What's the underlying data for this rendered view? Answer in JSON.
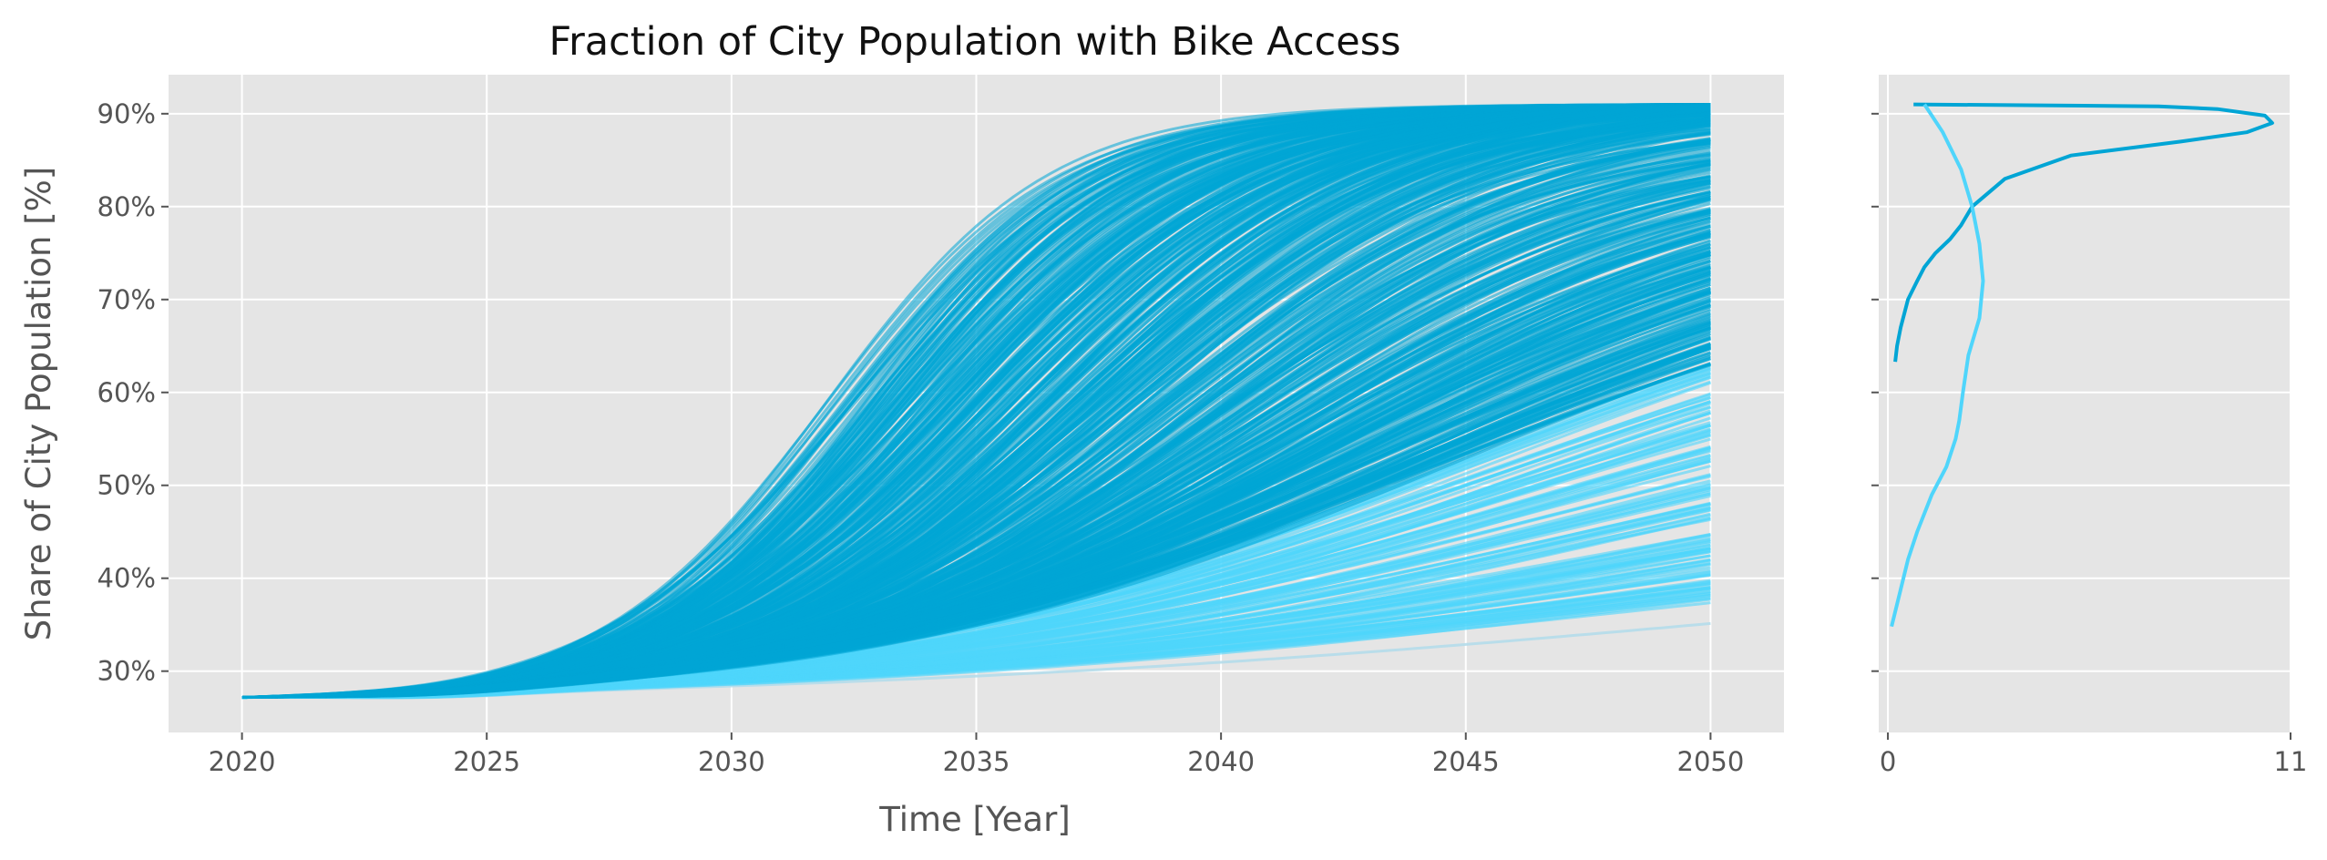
{
  "chart_data": [
    {
      "type": "line",
      "title": "Fraction of City Population with Bike Access",
      "xlabel": "Time [Year]",
      "ylabel": "Share of City Population [%]",
      "xlim": [
        2018.5,
        2051.5
      ],
      "ylim": [
        23.4,
        94.2
      ],
      "x_ticks": [
        2020,
        2025,
        2030,
        2035,
        2040,
        2045,
        2050
      ],
      "x_tick_labels": [
        "2020",
        "2025",
        "2030",
        "2035",
        "2040",
        "2045",
        "2050"
      ],
      "y_ticks": [
        30,
        40,
        50,
        60,
        70,
        80,
        90
      ],
      "y_tick_labels": [
        "30%",
        "40%",
        "50%",
        "60%",
        "70%",
        "80%",
        "90%"
      ],
      "grid": true,
      "colors": {
        "background": "#e5e5e5",
        "grid": "#ffffff",
        "dark_series": "#00a5d5",
        "light_series": "#4fd5fb",
        "pale_series": "#b4dcea"
      },
      "series_description_note": "",
      "series": [
        {
          "group": "dark",
          "start": 27.2,
          "end": 91.0,
          "min": 26.9,
          "midpoint_year": 2032.5,
          "rate": 0.42
        },
        {
          "group": "dark",
          "start": 27.2,
          "end": 91.0,
          "min": 26.9,
          "midpoint_year": 2033.0,
          "rate": 0.4
        },
        {
          "group": "dark",
          "start": 27.2,
          "end": 91.0,
          "min": 26.9,
          "midpoint_year": 2033.5,
          "rate": 0.38
        },
        {
          "group": "dark",
          "start": 27.2,
          "end": 91.0,
          "min": 26.9,
          "midpoint_year": 2034.0,
          "rate": 0.36
        },
        {
          "group": "dark",
          "start": 27.2,
          "end": 91.0,
          "min": 26.9,
          "midpoint_year": 2034.5,
          "rate": 0.35
        },
        {
          "group": "dark",
          "start": 27.2,
          "end": 91.0,
          "min": 26.9,
          "midpoint_year": 2035.0,
          "rate": 0.34
        },
        {
          "group": "dark",
          "start": 27.2,
          "end": 91.0,
          "min": 26.9,
          "midpoint_year": 2035.5,
          "rate": 0.33
        },
        {
          "group": "dark",
          "start": 27.2,
          "end": 91.0,
          "min": 26.9,
          "midpoint_year": 2036.0,
          "rate": 0.32
        },
        {
          "group": "dark",
          "start": 27.2,
          "end": 90.8,
          "min": 26.9,
          "midpoint_year": 2036.5,
          "rate": 0.31
        },
        {
          "group": "dark",
          "start": 27.2,
          "end": 90.5,
          "min": 26.9,
          "midpoint_year": 2037.0,
          "rate": 0.3
        },
        {
          "group": "dark",
          "start": 27.2,
          "end": 90.0,
          "min": 26.9,
          "midpoint_year": 2037.5,
          "rate": 0.29
        },
        {
          "group": "dark",
          "start": 27.2,
          "end": 89.0,
          "min": 26.9,
          "midpoint_year": 2038.0,
          "rate": 0.28
        },
        {
          "group": "dark",
          "start": 27.2,
          "end": 88.0,
          "min": 26.9,
          "midpoint_year": 2038.5,
          "rate": 0.27
        },
        {
          "group": "dark",
          "start": 27.2,
          "end": 86.0,
          "min": 26.9,
          "midpoint_year": 2039.0,
          "rate": 0.26
        },
        {
          "group": "dark",
          "start": 27.2,
          "end": 84.0,
          "min": 26.9,
          "midpoint_year": 2039.5,
          "rate": 0.25
        },
        {
          "group": "dark",
          "start": 27.2,
          "end": 82.0,
          "min": 26.9,
          "midpoint_year": 2040.0,
          "rate": 0.24
        },
        {
          "group": "dark",
          "start": 27.2,
          "end": 80.0,
          "min": 26.9,
          "midpoint_year": 2040.5,
          "rate": 0.23
        },
        {
          "group": "dark",
          "start": 27.2,
          "end": 78.0,
          "min": 26.9,
          "midpoint_year": 2041.0,
          "rate": 0.22
        },
        {
          "group": "dark",
          "start": 27.2,
          "end": 76.0,
          "min": 26.9,
          "midpoint_year": 2041.5,
          "rate": 0.21
        },
        {
          "group": "dark",
          "start": 27.2,
          "end": 74.0,
          "min": 26.9,
          "midpoint_year": 2042.0,
          "rate": 0.2
        },
        {
          "group": "dark",
          "start": 27.2,
          "end": 72.0,
          "min": 26.9,
          "midpoint_year": 2042.5,
          "rate": 0.19
        },
        {
          "group": "dark",
          "start": 27.2,
          "end": 70.0,
          "min": 26.9,
          "midpoint_year": 2043.0,
          "rate": 0.18
        },
        {
          "group": "dark",
          "start": 27.2,
          "end": 68.0,
          "min": 26.9,
          "midpoint_year": 2043.5,
          "rate": 0.17
        },
        {
          "group": "dark",
          "start": 27.2,
          "end": 66.0,
          "min": 26.9,
          "midpoint_year": 2044.0,
          "rate": 0.17
        },
        {
          "group": "dark",
          "start": 27.2,
          "end": 64.0,
          "min": 26.9,
          "midpoint_year": 2044.5,
          "rate": 0.16
        },
        {
          "group": "light",
          "start": 27.2,
          "end": 62.0,
          "min": 26.8,
          "midpoint_year": 2045.0,
          "rate": 0.15
        },
        {
          "group": "light",
          "start": 27.2,
          "end": 59.0,
          "min": 26.8,
          "midpoint_year": 2045.5,
          "rate": 0.15
        },
        {
          "group": "light",
          "start": 27.2,
          "end": 56.0,
          "min": 26.8,
          "midpoint_year": 2046.0,
          "rate": 0.14
        },
        {
          "group": "light",
          "start": 27.2,
          "end": 53.0,
          "min": 26.8,
          "midpoint_year": 2046.5,
          "rate": 0.14
        },
        {
          "group": "light",
          "start": 27.2,
          "end": 50.0,
          "min": 26.8,
          "midpoint_year": 2047.0,
          "rate": 0.13
        },
        {
          "group": "light",
          "start": 27.2,
          "end": 47.0,
          "min": 26.8,
          "midpoint_year": 2047.5,
          "rate": 0.13
        },
        {
          "group": "light",
          "start": 27.2,
          "end": 44.0,
          "min": 26.8,
          "midpoint_year": 2048.0,
          "rate": 0.12
        },
        {
          "group": "light",
          "start": 27.2,
          "end": 42.0,
          "min": 26.8,
          "midpoint_year": 2048.5,
          "rate": 0.12
        },
        {
          "group": "light",
          "start": 27.2,
          "end": 40.0,
          "min": 26.8,
          "midpoint_year": 2049.0,
          "rate": 0.11
        },
        {
          "group": "light",
          "start": 27.2,
          "end": 38.5,
          "min": 26.8,
          "midpoint_year": 2049.5,
          "rate": 0.11
        },
        {
          "group": "pale",
          "start": 27.2,
          "end": 34.8,
          "min": 26.8,
          "midpoint_year": 2052.0,
          "rate": 0.1
        }
      ]
    },
    {
      "type": "line",
      "orientation": "vertical",
      "xlim": [
        -0.25,
        11
      ],
      "ylim": [
        23.4,
        94.2
      ],
      "x_ticks": [
        0,
        11
      ],
      "x_tick_labels": [
        "0",
        "11"
      ],
      "y_ticks": [
        30,
        40,
        50,
        60,
        70,
        80,
        90
      ],
      "y_tick_labels_shown": false,
      "grid": true,
      "series": [
        {
          "group": "dark",
          "x": [
            0.7,
            7.4,
            9.0,
            10.3,
            10.5,
            9.8,
            8.0,
            5.0,
            3.2,
            2.3,
            2.0,
            1.7,
            1.3,
            1.0,
            0.8,
            0.55,
            0.45,
            0.35,
            0.25,
            0.2
          ],
          "y": [
            91.0,
            90.8,
            90.5,
            89.8,
            89.0,
            88.0,
            87.0,
            85.5,
            83.0,
            80.0,
            78.0,
            76.5,
            75.0,
            73.5,
            72.0,
            70.0,
            68.5,
            67.0,
            65.0,
            63.3
          ]
        },
        {
          "group": "light",
          "x": [
            1.0,
            1.5,
            2.0,
            2.3,
            2.5,
            2.6,
            2.5,
            2.2,
            2.05,
            1.95,
            1.85,
            1.6,
            1.2,
            0.8,
            0.55,
            0.3,
            0.1
          ],
          "y": [
            91.0,
            88.0,
            84.0,
            80.0,
            76.0,
            72.0,
            68.0,
            64.0,
            60.0,
            57.0,
            55.0,
            52.0,
            49.0,
            45.0,
            42.0,
            38.0,
            34.8
          ]
        }
      ]
    }
  ]
}
